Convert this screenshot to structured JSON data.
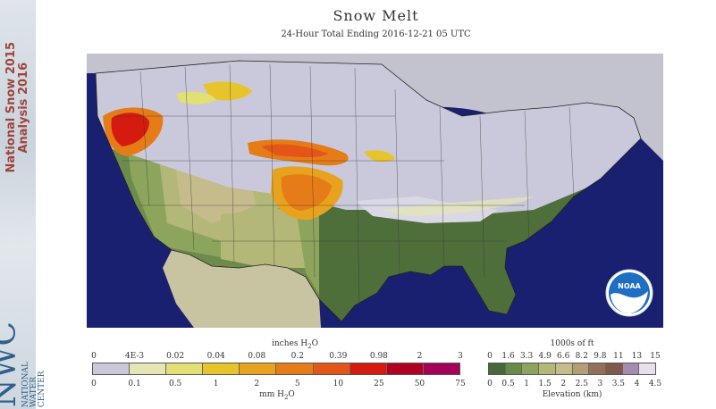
{
  "header": {
    "title": "Snow Melt",
    "subtitle": "24-Hour Total Ending 2016-12-21 05 UTC"
  },
  "sidebar": {
    "title_line1": "National Snow 2015",
    "title_line2": "Analysis 2016",
    "brand_letters": "NWC",
    "brand_words": [
      "NATIONAL",
      "WATER",
      "CENTER"
    ]
  },
  "logo": {
    "text": "NOAA",
    "colors": {
      "blue": "#1e6fc4",
      "white": "#ffffff"
    }
  },
  "colors": {
    "ocean": "#1a2070",
    "outside_us": "#c3c3cf",
    "land_base": "#6d8c4c"
  },
  "melt_legend": {
    "title_top": "inches H",
    "title_top_sub": "2",
    "title_top_end": "O",
    "title_bottom": "mm H",
    "title_bottom_sub": "2",
    "title_bottom_end": "O",
    "inch_ticks": [
      "0",
      "4E-3",
      "0.02",
      "0.04",
      "0.08",
      "0.2",
      "0.39",
      "0.98",
      "2",
      "3"
    ],
    "mm_ticks": [
      "0",
      "0.1",
      "0.5",
      "1",
      "2",
      "5",
      "10",
      "25",
      "50",
      "75"
    ],
    "colors": [
      "#c9c9db",
      "#e6e6b4",
      "#e2df74",
      "#e8c42c",
      "#e7a31d",
      "#e57c17",
      "#e45518",
      "#d51b10",
      "#b20023",
      "#a3005a"
    ]
  },
  "elevation_legend": {
    "title_top": "1000s of ft",
    "title_bottom": "Elevation (km)",
    "ft_ticks": [
      "0",
      "1.6",
      "3.3",
      "4.9",
      "6.6",
      "8.2",
      "9.8",
      "11",
      "13",
      "15"
    ],
    "km_ticks": [
      "0",
      "0.5",
      "1",
      "1.5",
      "2",
      "2.5",
      "3",
      "3.5",
      "4",
      "4.5"
    ],
    "colors": [
      "#47683a",
      "#688a4b",
      "#8da45d",
      "#b3b878",
      "#c6bb8b",
      "#b49c74",
      "#946f57",
      "#7d5a4a",
      "#a48cb0",
      "#e7e0ea"
    ]
  }
}
